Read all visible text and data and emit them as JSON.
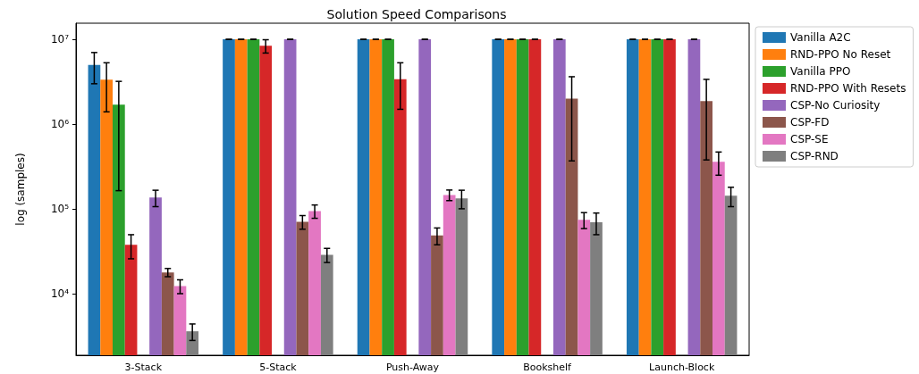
{
  "chart_data": {
    "type": "bar",
    "title": "Solution Speed Comparisons",
    "ylabel": "log (samples)",
    "categories": [
      "3-Stack",
      "5-Stack",
      "Push-Away",
      "Bookshelf",
      "Launch-Block"
    ],
    "log": true,
    "ylim": [
      1900,
      15500000
    ],
    "yticks": [
      {
        "value": 10000,
        "label": "10⁴"
      },
      {
        "value": 100000,
        "label": "10⁵"
      },
      {
        "value": 1000000,
        "label": "10⁶"
      },
      {
        "value": 10000000,
        "label": "10⁷"
      }
    ],
    "grid": false,
    "legend": "top right",
    "series": [
      {
        "name": "Vanilla A2C",
        "color": "#1f77b4",
        "values": [
          5000000,
          10000000,
          10000000,
          10000000,
          10000000
        ],
        "errors": [
          2000000,
          0,
          0,
          0,
          0
        ]
      },
      {
        "name": "RND-PPO No Reset",
        "color": "#ff7f0e",
        "values": [
          3350000,
          10000000,
          10000000,
          10000000,
          10000000
        ],
        "errors": [
          [
            1400000,
            5300000
          ],
          0,
          0,
          0,
          0
        ]
      },
      {
        "name": "Vanilla PPO",
        "color": "#2ca02c",
        "values": [
          1700000,
          10000000,
          10000000,
          10000000,
          10000000
        ],
        "errors": [
          [
            165000,
            3200000
          ],
          0,
          0,
          0,
          0
        ]
      },
      {
        "name": "RND-PPO With Resets",
        "color": "#d62728",
        "values": [
          38000,
          8400000,
          3400000,
          10000000,
          10000000
        ],
        "errors": [
          12000,
          1500000,
          1900000,
          0,
          0
        ]
      },
      {
        "color": "#ffffff",
        "values": [
          null,
          null,
          null,
          null,
          null
        ]
      },
      {
        "name": "CSP-No Curiosity",
        "color": "#9467bd",
        "values": [
          137000,
          10000000,
          10000000,
          10000000,
          10000000
        ],
        "errors": [
          30000,
          0,
          0,
          0,
          0
        ]
      },
      {
        "name": "CSP-FD",
        "color": "#8c564b",
        "values": [
          18000,
          71000,
          49000,
          2000000,
          1880000
        ],
        "errors": [
          2000,
          13000,
          11000,
          1630000,
          1500000
        ]
      },
      {
        "name": "CSP-SE",
        "color": "#e377c2",
        "values": [
          12400,
          95000,
          147000,
          75000,
          361000
        ],
        "errors": [
          2300,
          17000,
          21000,
          16000,
          110000
        ]
      },
      {
        "name": "CSP-RND",
        "color": "#7f7f7f",
        "values": [
          3640,
          29000,
          134000,
          70000,
          144000
        ],
        "errors": [
          800,
          5500,
          33000,
          20000,
          37000
        ]
      }
    ]
  }
}
